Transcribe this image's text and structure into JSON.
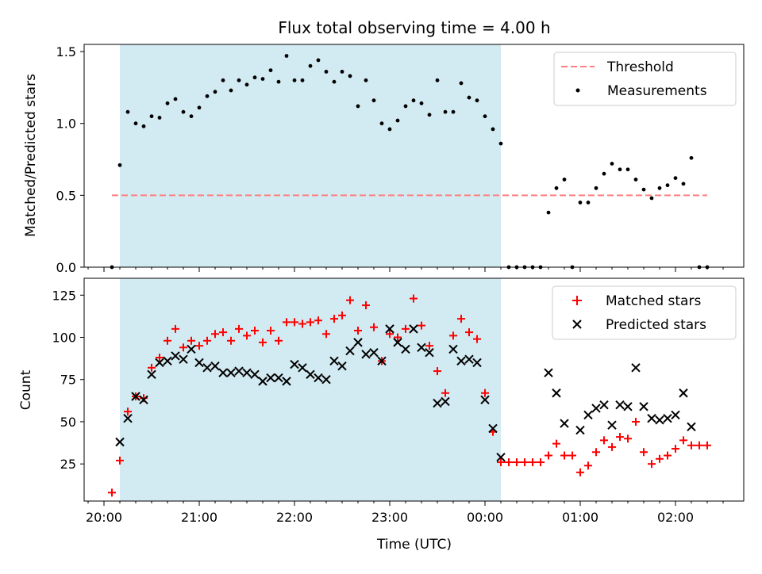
{
  "chart_data": {
    "type": "scatter",
    "title": "Flux total observing time = 4.00 h",
    "xlabel": "Time (UTC)",
    "x_tick_labels": [
      "20:00",
      "21:00",
      "22:00",
      "23:00",
      "00:00",
      "01:00",
      "02:00"
    ],
    "shaded_region": {
      "start": "20:10",
      "end": "00:10",
      "color": "#add8e6"
    },
    "panels": [
      {
        "name": "ratio",
        "ylabel": "Matched/Predicted stars",
        "ylim": [
          0,
          1.55
        ],
        "y_ticks": [
          "0.0",
          "0.5",
          "1.0",
          "1.5"
        ],
        "legend": [
          "Threshold",
          "Measurements"
        ],
        "legend_position": "upper right",
        "threshold": {
          "name": "Threshold",
          "value": 0.5,
          "x_start": "20:05",
          "x_end": "02:20",
          "color": "#ff7f7f"
        },
        "series": [
          {
            "name": "Measurements",
            "color": "#000000",
            "points": [
              [
                "20:05",
                0.0
              ],
              [
                "20:10",
                0.71
              ],
              [
                "20:15",
                1.08
              ],
              [
                "20:20",
                1.0
              ],
              [
                "20:25",
                0.98
              ],
              [
                "20:30",
                1.05
              ],
              [
                "20:35",
                1.04
              ],
              [
                "20:40",
                1.14
              ],
              [
                "20:45",
                1.17
              ],
              [
                "20:50",
                1.08
              ],
              [
                "20:55",
                1.05
              ],
              [
                "21:00",
                1.11
              ],
              [
                "21:05",
                1.19
              ],
              [
                "21:10",
                1.22
              ],
              [
                "21:15",
                1.3
              ],
              [
                "21:20",
                1.23
              ],
              [
                "21:25",
                1.3
              ],
              [
                "21:30",
                1.27
              ],
              [
                "21:35",
                1.32
              ],
              [
                "21:40",
                1.31
              ],
              [
                "21:45",
                1.37
              ],
              [
                "21:50",
                1.29
              ],
              [
                "21:55",
                1.47
              ],
              [
                "22:00",
                1.3
              ],
              [
                "22:05",
                1.3
              ],
              [
                "22:10",
                1.4
              ],
              [
                "22:15",
                1.44
              ],
              [
                "22:20",
                1.36
              ],
              [
                "22:25",
                1.29
              ],
              [
                "22:30",
                1.36
              ],
              [
                "22:35",
                1.33
              ],
              [
                "22:40",
                1.12
              ],
              [
                "22:45",
                1.3
              ],
              [
                "22:50",
                1.16
              ],
              [
                "22:55",
                1.0
              ],
              [
                "23:00",
                0.96
              ],
              [
                "23:05",
                1.02
              ],
              [
                "23:10",
                1.12
              ],
              [
                "23:15",
                1.16
              ],
              [
                "23:20",
                1.14
              ],
              [
                "23:25",
                1.06
              ],
              [
                "23:30",
                1.3
              ],
              [
                "23:35",
                1.08
              ],
              [
                "23:40",
                1.08
              ],
              [
                "23:45",
                1.28
              ],
              [
                "23:50",
                1.18
              ],
              [
                "23:55",
                1.16
              ],
              [
                "00:00",
                1.05
              ],
              [
                "00:05",
                0.96
              ],
              [
                "00:10",
                0.86
              ],
              [
                "00:15",
                0.0
              ],
              [
                "00:20",
                0.0
              ],
              [
                "00:25",
                0.0
              ],
              [
                "00:30",
                0.0
              ],
              [
                "00:35",
                0.0
              ],
              [
                "00:40",
                0.38
              ],
              [
                "00:45",
                0.55
              ],
              [
                "00:50",
                0.61
              ],
              [
                "00:55",
                0.0
              ],
              [
                "01:00",
                0.45
              ],
              [
                "01:05",
                0.45
              ],
              [
                "01:10",
                0.55
              ],
              [
                "01:15",
                0.65
              ],
              [
                "01:20",
                0.72
              ],
              [
                "01:25",
                0.68
              ],
              [
                "01:30",
                0.68
              ],
              [
                "01:35",
                0.61
              ],
              [
                "01:40",
                0.54
              ],
              [
                "01:45",
                0.48
              ],
              [
                "01:50",
                0.55
              ],
              [
                "01:55",
                0.57
              ],
              [
                "02:00",
                0.62
              ],
              [
                "02:05",
                0.58
              ],
              [
                "02:10",
                0.76
              ],
              [
                "02:15",
                0.0
              ],
              [
                "02:20",
                0.0
              ]
            ]
          }
        ]
      },
      {
        "name": "counts",
        "ylabel": "Count",
        "ylim": [
          3,
          135
        ],
        "y_ticks": [
          "25",
          "50",
          "75",
          "100",
          "125"
        ],
        "legend": [
          "Matched stars",
          "Predicted stars"
        ],
        "legend_position": "upper right",
        "series": [
          {
            "name": "Matched stars",
            "marker": "plus",
            "color": "#ff0000",
            "points": [
              [
                "20:05",
                8
              ],
              [
                "20:10",
                27
              ],
              [
                "20:15",
                56
              ],
              [
                "20:20",
                65
              ],
              [
                "20:25",
                64
              ],
              [
                "20:30",
                82
              ],
              [
                "20:35",
                88
              ],
              [
                "20:40",
                98
              ],
              [
                "20:45",
                105
              ],
              [
                "20:50",
                94
              ],
              [
                "20:55",
                98
              ],
              [
                "21:00",
                95
              ],
              [
                "21:05",
                98
              ],
              [
                "21:10",
                102
              ],
              [
                "21:15",
                103
              ],
              [
                "21:20",
                98
              ],
              [
                "21:25",
                105
              ],
              [
                "21:30",
                101
              ],
              [
                "21:35",
                104
              ],
              [
                "21:40",
                97
              ],
              [
                "21:45",
                104
              ],
              [
                "21:50",
                98
              ],
              [
                "21:55",
                109
              ],
              [
                "22:00",
                109
              ],
              [
                "22:05",
                108
              ],
              [
                "22:10",
                109
              ],
              [
                "22:15",
                110
              ],
              [
                "22:20",
                102
              ],
              [
                "22:25",
                111
              ],
              [
                "22:30",
                113
              ],
              [
                "22:35",
                122
              ],
              [
                "22:40",
                104
              ],
              [
                "22:45",
                119
              ],
              [
                "22:50",
                106
              ],
              [
                "22:55",
                86
              ],
              [
                "23:00",
                102
              ],
              [
                "23:05",
                100
              ],
              [
                "23:10",
                105
              ],
              [
                "23:15",
                123
              ],
              [
                "23:20",
                107
              ],
              [
                "23:25",
                95
              ],
              [
                "23:30",
                80
              ],
              [
                "23:35",
                67
              ],
              [
                "23:40",
                101
              ],
              [
                "23:45",
                111
              ],
              [
                "23:50",
                103
              ],
              [
                "23:55",
                99
              ],
              [
                "00:00",
                67
              ],
              [
                "00:05",
                44
              ],
              [
                "00:10",
                26
              ],
              [
                "00:15",
                26
              ],
              [
                "00:20",
                26
              ],
              [
                "00:25",
                26
              ],
              [
                "00:30",
                26
              ],
              [
                "00:35",
                26
              ],
              [
                "00:40",
                30
              ],
              [
                "00:45",
                37
              ],
              [
                "00:50",
                30
              ],
              [
                "00:55",
                30
              ],
              [
                "01:00",
                20
              ],
              [
                "01:05",
                24
              ],
              [
                "01:10",
                32
              ],
              [
                "01:15",
                39
              ],
              [
                "01:20",
                35
              ],
              [
                "01:25",
                41
              ],
              [
                "01:30",
                40
              ],
              [
                "01:35",
                50
              ],
              [
                "01:40",
                32
              ],
              [
                "01:45",
                25
              ],
              [
                "01:50",
                28
              ],
              [
                "01:55",
                30
              ],
              [
                "02:00",
                34
              ],
              [
                "02:05",
                39
              ],
              [
                "02:10",
                36
              ],
              [
                "02:15",
                36
              ],
              [
                "02:20",
                36
              ]
            ]
          },
          {
            "name": "Predicted stars",
            "marker": "x",
            "color": "#000000",
            "points": [
              [
                "20:10",
                38
              ],
              [
                "20:15",
                52
              ],
              [
                "20:20",
                65
              ],
              [
                "20:25",
                63
              ],
              [
                "20:30",
                78
              ],
              [
                "20:35",
                85
              ],
              [
                "20:40",
                86
              ],
              [
                "20:45",
                89
              ],
              [
                "20:50",
                87
              ],
              [
                "20:55",
                93
              ],
              [
                "21:00",
                85
              ],
              [
                "21:05",
                82
              ],
              [
                "21:10",
                83
              ],
              [
                "21:15",
                79
              ],
              [
                "21:20",
                79
              ],
              [
                "21:25",
                80
              ],
              [
                "21:30",
                79
              ],
              [
                "21:35",
                78
              ],
              [
                "21:40",
                74
              ],
              [
                "21:45",
                76
              ],
              [
                "21:50",
                76
              ],
              [
                "21:55",
                74
              ],
              [
                "22:00",
                84
              ],
              [
                "22:05",
                82
              ],
              [
                "22:10",
                78
              ],
              [
                "22:15",
                76
              ],
              [
                "22:20",
                75
              ],
              [
                "22:25",
                86
              ],
              [
                "22:30",
                83
              ],
              [
                "22:35",
                92
              ],
              [
                "22:40",
                97
              ],
              [
                "22:45",
                90
              ],
              [
                "22:50",
                91
              ],
              [
                "22:55",
                86
              ],
              [
                "23:00",
                105
              ],
              [
                "23:05",
                97
              ],
              [
                "23:10",
                93
              ],
              [
                "23:15",
                105
              ],
              [
                "23:20",
                94
              ],
              [
                "23:25",
                91
              ],
              [
                "23:30",
                61
              ],
              [
                "23:35",
                62
              ],
              [
                "23:40",
                93
              ],
              [
                "23:45",
                86
              ],
              [
                "23:50",
                87
              ],
              [
                "23:55",
                85
              ],
              [
                "00:00",
                63
              ],
              [
                "00:05",
                46
              ],
              [
                "00:10",
                29
              ],
              [
                "00:40",
                79
              ],
              [
                "00:45",
                67
              ],
              [
                "00:50",
                49
              ],
              [
                "01:00",
                45
              ],
              [
                "01:05",
                54
              ],
              [
                "01:10",
                58
              ],
              [
                "01:15",
                60
              ],
              [
                "01:20",
                48
              ],
              [
                "01:25",
                60
              ],
              [
                "01:30",
                59
              ],
              [
                "01:35",
                82
              ],
              [
                "01:40",
                59
              ],
              [
                "01:45",
                52
              ],
              [
                "01:50",
                51
              ],
              [
                "01:55",
                52
              ],
              [
                "02:00",
                54
              ],
              [
                "02:05",
                67
              ],
              [
                "02:10",
                47
              ]
            ]
          }
        ]
      }
    ]
  }
}
